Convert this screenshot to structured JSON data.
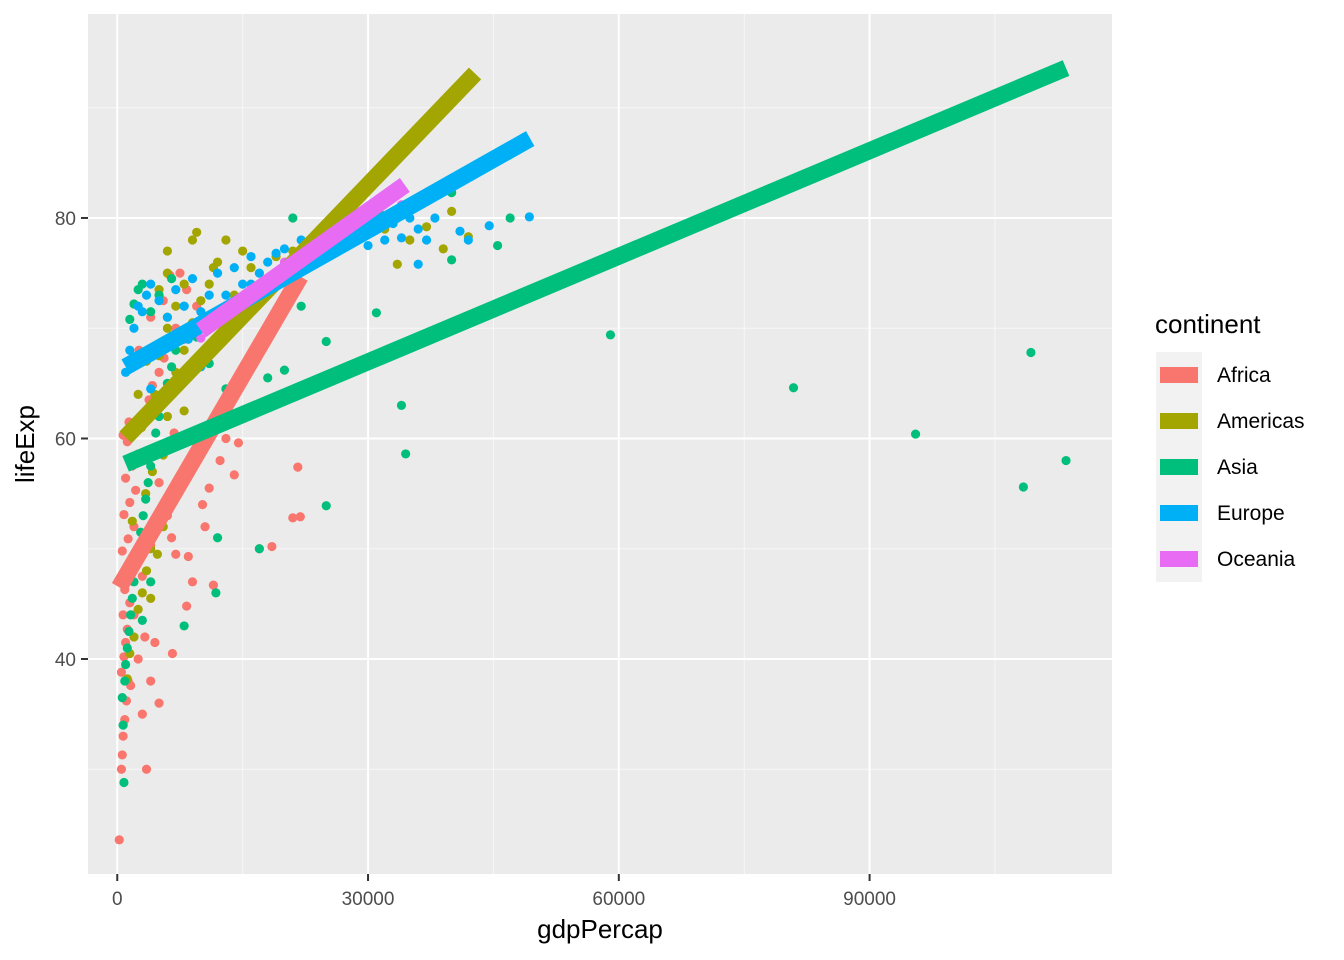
{
  "chart_data": {
    "type": "scatter",
    "xlabel": "gdpPercap",
    "ylabel": "lifeExp",
    "xlim": [
      -3500,
      119000
    ],
    "ylim": [
      20.5,
      98.5
    ],
    "x_ticks": [
      0,
      30000,
      60000,
      90000
    ],
    "x_tick_labels": [
      "0",
      "30000",
      "60000",
      "90000"
    ],
    "y_ticks": [
      40,
      60,
      80
    ],
    "y_tick_labels": [
      "40",
      "60",
      "80"
    ],
    "grid": true,
    "legend": {
      "title": "continent",
      "placement": "right"
    },
    "series": [
      {
        "name": "Africa",
        "color": "#F8766D",
        "fit": {
          "x": [
            241,
            21900
          ],
          "y": [
            46.5,
            74.7
          ]
        },
        "points": [
          [
            241,
            23.6
          ],
          [
            500,
            30.0
          ],
          [
            600,
            31.3
          ],
          [
            700,
            33.0
          ],
          [
            900,
            34.5
          ],
          [
            1100,
            36.2
          ],
          [
            1300,
            38.0
          ],
          [
            500,
            38.8
          ],
          [
            800,
            40.2
          ],
          [
            1000,
            41.5
          ],
          [
            1200,
            42.7
          ],
          [
            700,
            44.0
          ],
          [
            1500,
            45.1
          ],
          [
            900,
            46.3
          ],
          [
            1100,
            47.5
          ],
          [
            1700,
            48.6
          ],
          [
            600,
            49.8
          ],
          [
            1300,
            50.9
          ],
          [
            2000,
            52.0
          ],
          [
            800,
            53.1
          ],
          [
            1500,
            54.2
          ],
          [
            2200,
            55.3
          ],
          [
            1000,
            56.4
          ],
          [
            1800,
            57.5
          ],
          [
            2500,
            58.6
          ],
          [
            1200,
            59.7
          ],
          [
            2800,
            61.0
          ],
          [
            3300,
            62.3
          ],
          [
            3800,
            63.5
          ],
          [
            4200,
            64.8
          ],
          [
            5000,
            66.0
          ],
          [
            5600,
            67.3
          ],
          [
            6200,
            68.6
          ],
          [
            7000,
            70.0
          ],
          [
            2600,
            68.0
          ],
          [
            4000,
            71.0
          ],
          [
            5500,
            72.5
          ],
          [
            6300,
            74.8
          ],
          [
            7500,
            75.0
          ],
          [
            8300,
            73.5
          ],
          [
            9500,
            72.0
          ],
          [
            8000,
            69.0
          ],
          [
            4000,
            59.0
          ],
          [
            5000,
            56.0
          ],
          [
            6000,
            53.0
          ],
          [
            7000,
            49.5
          ],
          [
            9000,
            47.0
          ],
          [
            10500,
            52.0
          ],
          [
            11000,
            55.5
          ],
          [
            12300,
            58.0
          ],
          [
            13000,
            60.0
          ],
          [
            14000,
            56.7
          ],
          [
            14500,
            59.6
          ],
          [
            17000,
            50.0
          ],
          [
            18500,
            50.2
          ],
          [
            21000,
            52.8
          ],
          [
            21900,
            52.9
          ],
          [
            21600,
            57.4
          ],
          [
            11500,
            46.7
          ],
          [
            6600,
            40.5
          ],
          [
            4000,
            38.0
          ],
          [
            3500,
            30.0
          ],
          [
            3000,
            35.0
          ],
          [
            2500,
            40.0
          ],
          [
            2000,
            44.0
          ],
          [
            3000,
            47.5
          ],
          [
            4000,
            50.3
          ],
          [
            6500,
            51.0
          ],
          [
            8500,
            49.3
          ],
          [
            10200,
            54.0
          ],
          [
            3300,
            42.0
          ],
          [
            1600,
            37.6
          ],
          [
            5000,
            36.0
          ],
          [
            4500,
            41.5
          ],
          [
            700,
            60.3
          ],
          [
            1400,
            61.5
          ],
          [
            6800,
            60.5
          ],
          [
            8300,
            44.8
          ]
        ]
      },
      {
        "name": "Americas",
        "color": "#A3A500",
        "fit": {
          "x": [
            1000,
            42800
          ],
          "y": [
            60.1,
            93.1
          ]
        },
        "points": [
          [
            1200,
            38.2
          ],
          [
            1500,
            40.5
          ],
          [
            2000,
            42.0
          ],
          [
            2500,
            44.5
          ],
          [
            3000,
            46.0
          ],
          [
            3500,
            48.0
          ],
          [
            4000,
            50.0
          ],
          [
            1800,
            52.5
          ],
          [
            4800,
            49.5
          ],
          [
            3400,
            55.0
          ],
          [
            4200,
            57.0
          ],
          [
            5500,
            58.5
          ],
          [
            2900,
            61.0
          ],
          [
            6000,
            62.0
          ],
          [
            4500,
            64.0
          ],
          [
            7000,
            66.0
          ],
          [
            5000,
            67.5
          ],
          [
            8000,
            68.0
          ],
          [
            6000,
            70.0
          ],
          [
            9000,
            70.5
          ],
          [
            7000,
            72.0
          ],
          [
            10000,
            72.5
          ],
          [
            8000,
            74.0
          ],
          [
            11000,
            74.0
          ],
          [
            6000,
            75.0
          ],
          [
            12000,
            76.0
          ],
          [
            6000,
            77.0
          ],
          [
            9000,
            78.0
          ],
          [
            13000,
            78.0
          ],
          [
            9500,
            78.7
          ],
          [
            15000,
            77.0
          ],
          [
            17000,
            74.0
          ],
          [
            19000,
            76.5
          ],
          [
            21000,
            77.0
          ],
          [
            23000,
            78.0
          ],
          [
            26000,
            77.5
          ],
          [
            28000,
            78.5
          ],
          [
            32000,
            79.0
          ],
          [
            35000,
            78.0
          ],
          [
            37000,
            79.2
          ],
          [
            39000,
            77.2
          ],
          [
            42000,
            78.3
          ],
          [
            40000,
            80.6
          ],
          [
            33500,
            75.8
          ],
          [
            20000,
            75.3
          ],
          [
            6000,
            71.0
          ],
          [
            5000,
            73.5
          ],
          [
            3500,
            67.0
          ],
          [
            2500,
            64.0
          ],
          [
            14000,
            73.0
          ],
          [
            16000,
            75.5
          ],
          [
            11500,
            75.5
          ],
          [
            7500,
            65.5
          ],
          [
            8000,
            62.5
          ],
          [
            4000,
            45.5
          ],
          [
            5500,
            52.0
          ]
        ]
      },
      {
        "name": "Asia",
        "color": "#00BF7D",
        "fit": {
          "x": [
            1000,
            113500
          ],
          "y": [
            57.7,
            93.6
          ]
        },
        "points": [
          [
            800,
            28.8
          ],
          [
            700,
            34.0
          ],
          [
            600,
            36.5
          ],
          [
            900,
            38.0
          ],
          [
            1000,
            39.5
          ],
          [
            1200,
            41.0
          ],
          [
            1400,
            42.5
          ],
          [
            1600,
            44.0
          ],
          [
            1800,
            45.5
          ],
          [
            2000,
            47.0
          ],
          [
            2200,
            48.5
          ],
          [
            2500,
            50.0
          ],
          [
            2800,
            51.5
          ],
          [
            3100,
            53.0
          ],
          [
            3400,
            54.5
          ],
          [
            3700,
            56.0
          ],
          [
            4000,
            57.5
          ],
          [
            4300,
            59.0
          ],
          [
            4600,
            60.5
          ],
          [
            5000,
            62.0
          ],
          [
            5500,
            63.5
          ],
          [
            6000,
            65.0
          ],
          [
            6500,
            66.5
          ],
          [
            7000,
            68.0
          ],
          [
            7500,
            69.5
          ],
          [
            1500,
            70.8
          ],
          [
            2000,
            72.2
          ],
          [
            2500,
            73.5
          ],
          [
            3000,
            74.0
          ],
          [
            4000,
            71.5
          ],
          [
            5000,
            73.0
          ],
          [
            6500,
            74.5
          ],
          [
            8000,
            72.0
          ],
          [
            9500,
            69.2
          ],
          [
            11000,
            66.8
          ],
          [
            13000,
            64.5
          ],
          [
            15000,
            62.0
          ],
          [
            18000,
            65.5
          ],
          [
            20000,
            66.2
          ],
          [
            22000,
            72.0
          ],
          [
            25000,
            68.8
          ],
          [
            25000,
            53.9
          ],
          [
            31000,
            71.4
          ],
          [
            34000,
            63.0
          ],
          [
            34500,
            58.6
          ],
          [
            40000,
            76.2
          ],
          [
            45500,
            77.5
          ],
          [
            47000,
            80.0
          ],
          [
            40000,
            82.3
          ],
          [
            31500,
            80.3
          ],
          [
            28000,
            79.5
          ],
          [
            21000,
            80.0
          ],
          [
            59000,
            69.4
          ],
          [
            80900,
            64.6
          ],
          [
            95500,
            60.4
          ],
          [
            108400,
            55.6
          ],
          [
            109300,
            67.8
          ],
          [
            113500,
            58.0
          ],
          [
            11800,
            46.0
          ],
          [
            8000,
            43.0
          ],
          [
            12000,
            51.0
          ],
          [
            17000,
            50.0
          ],
          [
            4000,
            47.0
          ],
          [
            3000,
            43.5
          ]
        ]
      },
      {
        "name": "Europe",
        "color": "#00B0F6",
        "fit": {
          "x": [
            1000,
            49400
          ],
          "y": [
            66.5,
            87.2
          ]
        },
        "points": [
          [
            1000,
            66.0
          ],
          [
            1500,
            68.0
          ],
          [
            2000,
            70.0
          ],
          [
            2500,
            72.0
          ],
          [
            3000,
            71.5
          ],
          [
            3500,
            73.0
          ],
          [
            4000,
            74.0
          ],
          [
            5000,
            72.5
          ],
          [
            6000,
            71.0
          ],
          [
            7000,
            73.5
          ],
          [
            8000,
            72.0
          ],
          [
            9000,
            74.5
          ],
          [
            10000,
            71.5
          ],
          [
            11000,
            73.0
          ],
          [
            12000,
            75.0
          ],
          [
            13000,
            73.0
          ],
          [
            14000,
            75.5
          ],
          [
            15000,
            74.0
          ],
          [
            16000,
            76.5
          ],
          [
            17000,
            75.0
          ],
          [
            18000,
            76.0
          ],
          [
            19000,
            76.8
          ],
          [
            20000,
            77.2
          ],
          [
            21000,
            76.3
          ],
          [
            22000,
            78.0
          ],
          [
            23000,
            77.0
          ],
          [
            24000,
            78.5
          ],
          [
            25000,
            79.5
          ],
          [
            26000,
            78.8
          ],
          [
            27000,
            80.2
          ],
          [
            28000,
            79.0
          ],
          [
            29000,
            80.5
          ],
          [
            30000,
            77.5
          ],
          [
            32000,
            78.0
          ],
          [
            33000,
            79.5
          ],
          [
            34000,
            78.2
          ],
          [
            35000,
            80.0
          ],
          [
            36000,
            79.0
          ],
          [
            37000,
            78.0
          ],
          [
            38000,
            80.0
          ],
          [
            41000,
            78.8
          ],
          [
            42000,
            78.0
          ],
          [
            44500,
            79.3
          ],
          [
            49300,
            80.1
          ],
          [
            3000,
            62.0
          ],
          [
            4000,
            64.5
          ],
          [
            6000,
            68.5
          ],
          [
            8500,
            69.0
          ],
          [
            10000,
            66.5
          ],
          [
            13500,
            70.0
          ],
          [
            16000,
            74.0
          ],
          [
            36000,
            75.8
          ]
        ]
      },
      {
        "name": "Oceania",
        "color": "#E76BF3",
        "fit": {
          "x": [
            10000,
            34400
          ],
          "y": [
            69.8,
            83.0
          ]
        },
        "points": [
          [
            10000,
            69.1
          ],
          [
            10500,
            70.3
          ],
          [
            11000,
            70.5
          ],
          [
            12000,
            71.0
          ],
          [
            13000,
            71.5
          ],
          [
            14000,
            72.0
          ],
          [
            16000,
            73.5
          ],
          [
            18000,
            74.5
          ],
          [
            20000,
            76.0
          ],
          [
            23000,
            77.5
          ],
          [
            26000,
            79.0
          ],
          [
            30000,
            80.0
          ],
          [
            34000,
            81.2
          ],
          [
            13500,
            70.8
          ],
          [
            15500,
            71.7
          ],
          [
            19500,
            74.1
          ]
        ]
      }
    ]
  }
}
